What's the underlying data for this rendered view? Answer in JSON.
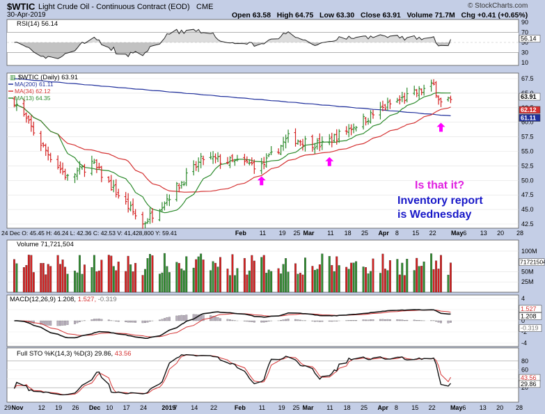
{
  "header": {
    "symbol": "$WTIC",
    "name": "Light Crude Oil - Continuous Contract (EOD)",
    "exchange": "CME",
    "date": "30-Apr-2019",
    "ohlc": "Open 63.58   High 64.75   Low 63.30   Close 63.91   Volume 71.7M   Chg +0.41 (+0.65%)",
    "logo": "© StockCharts.com",
    "change_arrow": "▲"
  },
  "colors": {
    "up": "#2e8b2e",
    "down": "#d42020",
    "ma200": "#1f2f9c",
    "ma34": "#d43030",
    "ma13": "#2b8a2b",
    "frame": "#c4cee6",
    "annotation_pink": "#e020e0",
    "annotation_blue": "#1818c8",
    "arrow": "#ff00ff"
  },
  "rsi_panel": {
    "label": "RSI(14) 56.14",
    "ticks": [
      "90",
      "70",
      "50",
      "30",
      "10"
    ],
    "last_label": "56.14"
  },
  "price_panel": {
    "title": "$WTIC (Daily) 63.91",
    "legend": [
      "MA(200) 61.11",
      "MA(34) 62.12",
      "MA(13) 64.35"
    ],
    "y_ticks": [
      "67.5",
      "65.0",
      "62.5",
      "60.0",
      "57.5",
      "55.0",
      "52.5",
      "50.0",
      "47.5",
      "45.0",
      "42.5"
    ],
    "last_labels": {
      "close": "63.91",
      "ma34": "62.12",
      "ma200": "61.11"
    },
    "info": "24 Dec  O: 45.45   H: 46.24   L: 42.36   C: 42.53   V: 41,428,800   Y: 59.41",
    "mid_axis": [
      "Feb",
      "11",
      "19",
      "25",
      "Mar",
      "11",
      "18",
      "25",
      "Apr",
      "8",
      "15",
      "22",
      "May",
      "6",
      "13",
      "20",
      "28"
    ]
  },
  "annotations": {
    "question": "Is that it?",
    "note_line1": "Inventory report",
    "note_line2": "is Wednesday"
  },
  "volume_panel": {
    "label": "Volume 71,721,504",
    "ticks": [
      "100M",
      "50M",
      "25M"
    ],
    "last_label": "71721504"
  },
  "macd_panel": {
    "label_main": "MACD(12,26,9) 1.208,",
    "label_signal": "1.527,",
    "label_hist": "-0.319",
    "ticks": [
      "4",
      "2",
      "0",
      "-2",
      "-4"
    ],
    "last_labels": [
      "1.527",
      "1.208",
      "-0.319"
    ]
  },
  "sto_panel": {
    "label_main": "Full STO %K(14,3) %D(3) 29.86,",
    "label_d": "43.56",
    "ticks": [
      "80",
      "60",
      "40",
      "20"
    ],
    "last_labels": [
      "43.56",
      "29.86"
    ]
  },
  "bottom_axis": [
    "29",
    "Nov",
    "12",
    "19",
    "26",
    "Dec",
    "10",
    "17",
    "24",
    "2019",
    "7",
    "14",
    "22",
    "Feb",
    "11",
    "19",
    "25",
    "Mar",
    "11",
    "18",
    "25",
    "Apr",
    "8",
    "15",
    "22",
    "May",
    "6",
    "13",
    "20",
    "28"
  ],
  "chart_data": {
    "type": "bar",
    "title": "$WTIC Light Crude Oil - Continuous Contract (EOD) CME",
    "x_range": [
      "2018-10-29",
      "2019-05-28"
    ],
    "price_ylim": [
      42.5,
      67.5
    ],
    "key_points": [
      {
        "date": "2018-11-01",
        "close": 63.7
      },
      {
        "date": "2018-11-13",
        "close": 55.7
      },
      {
        "date": "2018-11-23",
        "close": 50.4
      },
      {
        "date": "2018-12-03",
        "close": 53.0
      },
      {
        "date": "2018-12-24",
        "close": 42.5
      },
      {
        "date": "2019-01-02",
        "close": 46.5
      },
      {
        "date": "2019-01-18",
        "close": 53.8
      },
      {
        "date": "2019-02-08",
        "close": 52.7
      },
      {
        "date": "2019-02-11",
        "close": 52.4
      },
      {
        "date": "2019-02-22",
        "close": 57.3
      },
      {
        "date": "2019-03-08",
        "close": 56.1
      },
      {
        "date": "2019-03-19",
        "close": 58.9
      },
      {
        "date": "2019-04-05",
        "close": 63.1
      },
      {
        "date": "2019-04-23",
        "close": 66.3
      },
      {
        "date": "2019-04-26",
        "close": 63.3
      },
      {
        "date": "2019-04-30",
        "close": 63.91
      }
    ],
    "moving_averages": [
      {
        "name": "MA(200)",
        "last": 61.11
      },
      {
        "name": "MA(34)",
        "last": 62.12
      },
      {
        "name": "MA(13)",
        "last": 64.35
      }
    ],
    "rsi_last": 56.14,
    "volume_last": 71721504,
    "macd": {
      "macd": 1.208,
      "signal": 1.527,
      "hist": -0.319
    },
    "stochastic": {
      "k": 29.86,
      "d": 43.56
    }
  }
}
